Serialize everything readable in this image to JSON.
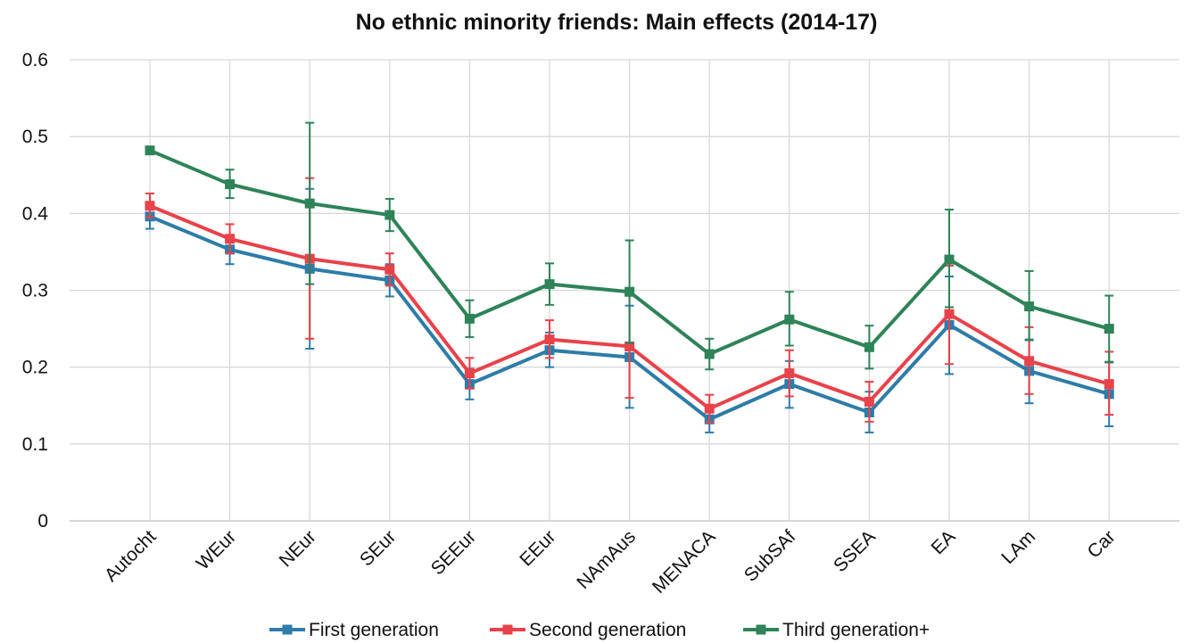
{
  "chart_data": {
    "type": "line",
    "title": "No ethnic minority friends: Main effects (2014-17)",
    "xlabel": "",
    "ylabel": "",
    "ylim": [
      0,
      0.6
    ],
    "yticks": [
      "0",
      "0.1",
      "0.2",
      "0.3",
      "0.4",
      "0.5",
      "0.6"
    ],
    "grid": true,
    "legend_position": "bottom",
    "categories": [
      "Autocht",
      "WEur",
      "NEur",
      "SEur",
      "SEEur",
      "EEur",
      "NAmAus",
      "MENACA",
      "SubSAf",
      "SSEA",
      "EA",
      "LAm",
      "Car"
    ],
    "series": [
      {
        "name": "First generation",
        "color": "#2e7ca8",
        "values": [
          0.396,
          0.353,
          0.328,
          0.313,
          0.178,
          0.222,
          0.213,
          0.132,
          0.178,
          0.141,
          0.255,
          0.195,
          0.165
        ],
        "err_low": [
          0.38,
          0.334,
          0.224,
          0.292,
          0.158,
          0.2,
          0.147,
          0.115,
          0.147,
          0.115,
          0.191,
          0.153,
          0.123
        ],
        "err_high": [
          0.412,
          0.372,
          0.432,
          0.334,
          0.198,
          0.245,
          0.28,
          0.15,
          0.208,
          0.168,
          0.318,
          0.236,
          0.206
        ]
      },
      {
        "name": "Second generation",
        "color": "#e8424a",
        "values": [
          0.41,
          0.367,
          0.341,
          0.327,
          0.192,
          0.236,
          0.227,
          0.146,
          0.192,
          0.155,
          0.269,
          0.208,
          0.178
        ],
        "err_low": [
          0.395,
          0.348,
          0.237,
          0.306,
          0.172,
          0.212,
          0.16,
          0.128,
          0.162,
          0.129,
          0.204,
          0.165,
          0.138
        ],
        "err_high": [
          0.426,
          0.386,
          0.446,
          0.348,
          0.212,
          0.261,
          0.293,
          0.164,
          0.222,
          0.181,
          0.332,
          0.252,
          0.22
        ]
      },
      {
        "name": "Third generation+",
        "color": "#2e8358",
        "values": [
          0.482,
          0.438,
          0.413,
          0.398,
          0.263,
          0.308,
          0.298,
          0.217,
          0.262,
          0.226,
          0.34,
          0.279,
          0.25
        ],
        "err_low": [
          0.482,
          0.42,
          0.308,
          0.377,
          0.239,
          0.281,
          0.231,
          0.197,
          0.228,
          0.198,
          0.278,
          0.235,
          0.207
        ],
        "err_high": [
          0.482,
          0.457,
          0.518,
          0.419,
          0.287,
          0.335,
          0.365,
          0.237,
          0.298,
          0.254,
          0.405,
          0.325,
          0.293
        ]
      }
    ]
  }
}
